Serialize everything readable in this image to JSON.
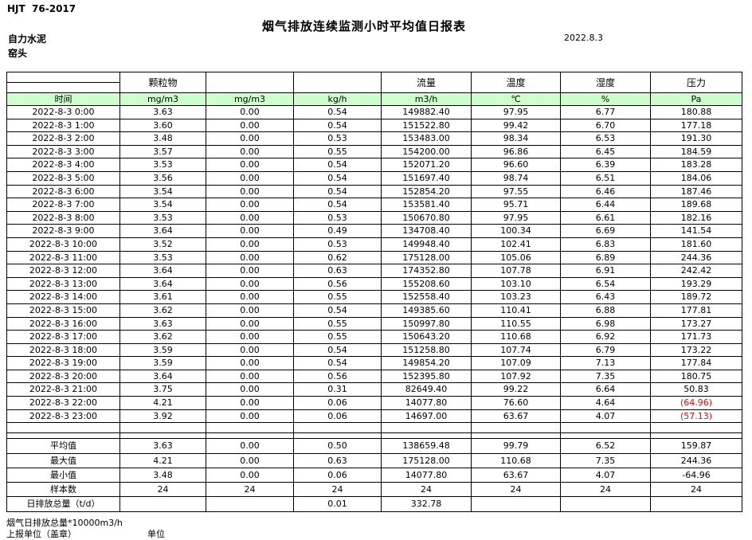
{
  "page": {
    "standard": "HJT  76-2017",
    "title": "烟气排放连续监测小时平均值日报表",
    "company": "自力水泥",
    "station": "窑头",
    "date": "2022.8.3"
  },
  "table": {
    "header_groups": [
      "",
      "颗粒物",
      "",
      "",
      "流量",
      "温度",
      "湿度",
      "压力"
    ],
    "header_units": [
      "时间",
      "mg/m3",
      "mg/m3",
      "kg/h",
      "m3/h",
      "℃",
      "%",
      "Pa"
    ],
    "rows": [
      {
        "time": "2022-8-3 0:00",
        "values": [
          "3.63",
          "0.00",
          "0.54",
          "149882.40",
          "97.95",
          "6.77",
          "180.88"
        ]
      },
      {
        "time": "2022-8-3 1:00",
        "values": [
          "3.60",
          "0.00",
          "0.54",
          "151522.80",
          "99.42",
          "6.70",
          "177.18"
        ]
      },
      {
        "time": "2022-8-3 2:00",
        "values": [
          "3.48",
          "0.00",
          "0.53",
          "153483.00",
          "98.34",
          "6.53",
          "191.30"
        ]
      },
      {
        "time": "2022-8-3 3:00",
        "values": [
          "3.57",
          "0.00",
          "0.55",
          "154200.00",
          "96.86",
          "6.45",
          "184.59"
        ]
      },
      {
        "time": "2022-8-3 4:00",
        "values": [
          "3.53",
          "0.00",
          "0.54",
          "152071.20",
          "96.60",
          "6.39",
          "183.28"
        ]
      },
      {
        "time": "2022-8-3 5:00",
        "values": [
          "3.56",
          "0.00",
          "0.54",
          "151697.40",
          "98.74",
          "6.51",
          "184.06"
        ]
      },
      {
        "time": "2022-8-3 6:00",
        "values": [
          "3.54",
          "0.00",
          "0.54",
          "152854.20",
          "97.55",
          "6.46",
          "187.46"
        ]
      },
      {
        "time": "2022-8-3 7:00",
        "values": [
          "3.54",
          "0.00",
          "0.54",
          "153581.40",
          "95.71",
          "6.44",
          "189.68"
        ]
      },
      {
        "time": "2022-8-3 8:00",
        "values": [
          "3.53",
          "0.00",
          "0.53",
          "150670.80",
          "97.95",
          "6.61",
          "182.16"
        ]
      },
      {
        "time": "2022-8-3 9:00",
        "values": [
          "3.64",
          "0.00",
          "0.49",
          "134708.40",
          "100.34",
          "6.69",
          "141.54"
        ]
      },
      {
        "time": "2022-8-3 10:00",
        "values": [
          "3.52",
          "0.00",
          "0.53",
          "149948.40",
          "102.41",
          "6.83",
          "181.60"
        ]
      },
      {
        "time": "2022-8-3 11:00",
        "values": [
          "3.53",
          "0.00",
          "0.62",
          "175128.00",
          "105.06",
          "6.89",
          "244.36"
        ]
      },
      {
        "time": "2022-8-3 12:00",
        "values": [
          "3.64",
          "0.00",
          "0.63",
          "174352.80",
          "107.78",
          "6.91",
          "242.42"
        ]
      },
      {
        "time": "2022-8-3 13:00",
        "values": [
          "3.64",
          "0.00",
          "0.56",
          "155208.60",
          "103.10",
          "6.54",
          "193.29"
        ]
      },
      {
        "time": "2022-8-3 14:00",
        "values": [
          "3.61",
          "0.00",
          "0.55",
          "152558.40",
          "103.23",
          "6.43",
          "189.72"
        ]
      },
      {
        "time": "2022-8-3 15:00",
        "values": [
          "3.62",
          "0.00",
          "0.54",
          "149385.60",
          "110.41",
          "6.88",
          "177.81"
        ]
      },
      {
        "time": "2022-8-3 16:00",
        "values": [
          "3.63",
          "0.00",
          "0.55",
          "150997.80",
          "110.55",
          "6.98",
          "173.27"
        ]
      },
      {
        "time": "2022-8-3 17:00",
        "values": [
          "3.62",
          "0.00",
          "0.55",
          "150643.20",
          "110.68",
          "6.92",
          "171.73"
        ]
      },
      {
        "time": "2022-8-3 18:00",
        "values": [
          "3.59",
          "0.00",
          "0.54",
          "151258.80",
          "107.74",
          "6.79",
          "173.22"
        ]
      },
      {
        "time": "2022-8-3 19:00",
        "values": [
          "3.59",
          "0.00",
          "0.54",
          "149854.20",
          "107.09",
          "7.13",
          "177.84"
        ]
      },
      {
        "time": "2022-8-3 20:00",
        "values": [
          "3.64",
          "0.00",
          "0.56",
          "152395.80",
          "107.92",
          "7.35",
          "180.75"
        ]
      },
      {
        "time": "2022-8-3 21:00",
        "values": [
          "3.75",
          "0.00",
          "0.31",
          "82649.40",
          "99.22",
          "6.64",
          "50.83"
        ]
      },
      {
        "time": "2022-8-3 22:00",
        "values": [
          "4.21",
          "0.00",
          "0.06",
          "14077.80",
          "76.60",
          "4.64",
          "(64.96)"
        ]
      },
      {
        "time": "2022-8-3 23:00",
        "values": [
          "3.92",
          "0.00",
          "0.06",
          "14697.00",
          "63.67",
          "4.07",
          "(57.13)"
        ]
      }
    ],
    "summary": [
      {
        "label": "平均值",
        "values": [
          "3.63",
          "0.00",
          "0.50",
          "138659.48",
          "99.79",
          "6.52",
          "159.87"
        ]
      },
      {
        "label": "最大值",
        "values": [
          "4.21",
          "0.00",
          "0.63",
          "175128.00",
          "110.68",
          "7.35",
          "244.36"
        ]
      },
      {
        "label": "最小值",
        "values": [
          "3.48",
          "0.00",
          "0.06",
          "14077.80",
          "63.67",
          "4.07",
          "-64.96"
        ]
      },
      {
        "label": "样本数",
        "values": [
          "24",
          "24",
          "24",
          "24",
          "24",
          "24",
          "24"
        ]
      },
      {
        "label": "日排放总量（t/d）",
        "values": [
          "",
          "",
          "0.01",
          "332.78",
          "",
          "",
          ""
        ]
      }
    ]
  },
  "footer": {
    "note": "烟气日排放总量*10000m3/h",
    "report_unit": "上报单位（盖章）",
    "unit_label": "单位"
  },
  "colors": {
    "header_green": "#ccffcc",
    "negative_red": "#ff0000"
  }
}
